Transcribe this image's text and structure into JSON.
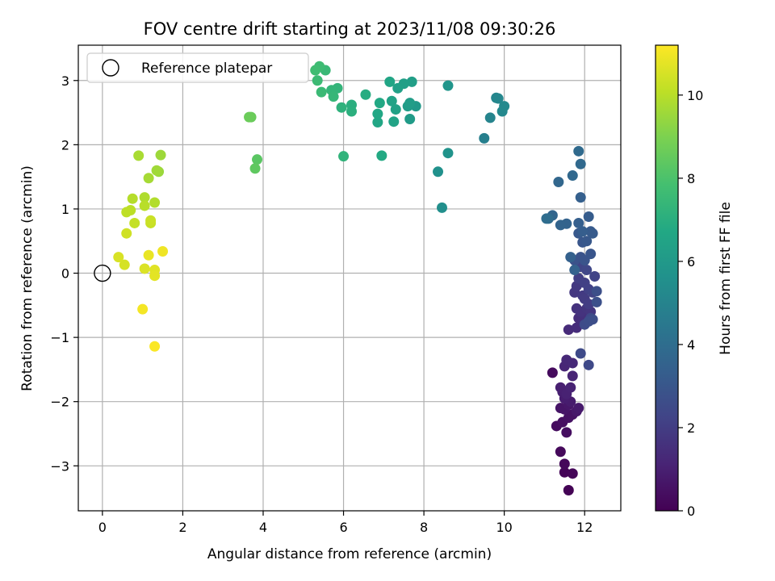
{
  "chart_data": {
    "type": "scatter",
    "title": "FOV centre drift starting at 2023/11/08 09:30:26",
    "xlabel": "Angular distance from reference (arcmin)",
    "ylabel": "Rotation from reference (arcmin)",
    "xlim": [
      -0.6,
      12.9
    ],
    "ylim": [
      -3.7,
      3.55
    ],
    "xticks": [
      0,
      2,
      4,
      6,
      8,
      10,
      12
    ],
    "yticks": [
      -3,
      -2,
      -1,
      0,
      1,
      2,
      3
    ],
    "xtick_labels": [
      "0",
      "2",
      "4",
      "6",
      "8",
      "10",
      "12"
    ],
    "ytick_labels": [
      "−3",
      "−2",
      "−1",
      "0",
      "1",
      "2",
      "3"
    ],
    "grid": true,
    "legend": {
      "position": "top-left",
      "entries": [
        "Reference platepar"
      ]
    },
    "reference_point": {
      "x": 0,
      "y": 0
    },
    "colorbar": {
      "label": "Hours from first FF file",
      "range": [
        0,
        11.2
      ],
      "ticks": [
        0,
        2,
        4,
        6,
        8,
        10
      ],
      "tick_labels": [
        "0",
        "2",
        "4",
        "6",
        "8",
        "10"
      ],
      "colormap": "viridis"
    },
    "points": [
      [
        11.6,
        -3.38,
        0.05
      ],
      [
        11.5,
        -3.1,
        0.1
      ],
      [
        11.7,
        -3.12,
        0.15
      ],
      [
        11.5,
        -2.97,
        0.2
      ],
      [
        11.4,
        -2.78,
        0.25
      ],
      [
        11.2,
        -1.55,
        0.3
      ],
      [
        11.3,
        -2.38,
        0.35
      ],
      [
        11.55,
        -2.48,
        0.4
      ],
      [
        11.45,
        -2.32,
        0.45
      ],
      [
        11.6,
        -2.25,
        0.5
      ],
      [
        11.7,
        -2.2,
        0.55
      ],
      [
        11.4,
        -2.1,
        0.6
      ],
      [
        11.5,
        -2.12,
        0.65
      ],
      [
        11.6,
        -2.05,
        0.7
      ],
      [
        11.8,
        -2.15,
        0.75
      ],
      [
        11.85,
        -2.1,
        0.8
      ],
      [
        11.65,
        -2.0,
        0.85
      ],
      [
        11.5,
        -1.95,
        0.9
      ],
      [
        11.45,
        -1.85,
        0.95
      ],
      [
        11.4,
        -1.78,
        1.0
      ],
      [
        11.55,
        -1.88,
        1.05
      ],
      [
        11.65,
        -1.78,
        1.1
      ],
      [
        11.7,
        -1.6,
        1.15
      ],
      [
        11.5,
        -1.45,
        1.2
      ],
      [
        11.55,
        -1.35,
        1.25
      ],
      [
        11.7,
        -1.4,
        1.3
      ],
      [
        11.6,
        -0.88,
        1.35
      ],
      [
        11.8,
        -0.85,
        1.4
      ],
      [
        11.85,
        -0.7,
        1.45
      ],
      [
        11.95,
        -0.72,
        1.5
      ],
      [
        12.0,
        -0.65,
        1.55
      ],
      [
        11.8,
        -0.55,
        1.6
      ],
      [
        11.9,
        -0.6,
        1.65
      ],
      [
        12.05,
        -0.55,
        1.7
      ],
      [
        12.15,
        -0.6,
        1.75
      ],
      [
        11.75,
        -0.3,
        1.8
      ],
      [
        11.8,
        -0.2,
        1.85
      ],
      [
        11.95,
        -0.35,
        1.9
      ],
      [
        12.0,
        -0.4,
        1.95
      ],
      [
        12.1,
        -0.48,
        2.0
      ],
      [
        11.85,
        -0.08,
        2.05
      ],
      [
        12.0,
        -0.15,
        2.1
      ],
      [
        12.1,
        -0.25,
        2.15
      ],
      [
        12.2,
        -0.3,
        2.2
      ],
      [
        12.25,
        -0.05,
        2.25
      ],
      [
        11.9,
        0.1,
        2.3
      ],
      [
        12.05,
        0.05,
        2.35
      ],
      [
        12.15,
        -0.7,
        2.4
      ],
      [
        12.1,
        -1.43,
        2.45
      ],
      [
        11.9,
        -1.25,
        2.5
      ],
      [
        12.0,
        -0.8,
        2.55
      ],
      [
        12.1,
        -0.75,
        2.6
      ],
      [
        12.2,
        -0.72,
        2.65
      ],
      [
        12.3,
        -0.28,
        2.7
      ],
      [
        12.3,
        -0.45,
        2.75
      ],
      [
        11.75,
        0.2,
        2.8
      ],
      [
        11.9,
        0.25,
        2.85
      ],
      [
        12.0,
        0.2,
        2.9
      ],
      [
        12.15,
        0.3,
        2.95
      ],
      [
        11.95,
        0.48,
        3.0
      ],
      [
        12.05,
        0.5,
        3.05
      ],
      [
        11.85,
        0.62,
        3.1
      ],
      [
        12.15,
        0.65,
        3.15
      ],
      [
        12.2,
        0.62,
        3.2
      ],
      [
        12.1,
        0.88,
        3.25
      ],
      [
        11.95,
        0.65,
        3.3
      ],
      [
        11.85,
        0.78,
        3.35
      ],
      [
        11.9,
        1.18,
        3.4
      ],
      [
        11.65,
        0.25,
        3.45
      ],
      [
        11.75,
        0.05,
        3.5
      ],
      [
        11.55,
        0.77,
        3.55
      ],
      [
        11.4,
        0.75,
        3.6
      ],
      [
        11.2,
        0.9,
        3.65
      ],
      [
        11.35,
        1.42,
        3.7
      ],
      [
        11.7,
        1.52,
        3.75
      ],
      [
        11.9,
        1.7,
        3.8
      ],
      [
        11.85,
        1.9,
        3.85
      ],
      [
        11.1,
        0.85,
        3.9
      ],
      [
        11.05,
        0.85,
        4.0
      ],
      [
        9.5,
        2.1,
        4.8
      ],
      [
        9.65,
        2.42,
        5.0
      ],
      [
        9.8,
        2.73,
        5.1
      ],
      [
        9.85,
        2.72,
        5.15
      ],
      [
        9.95,
        2.52,
        5.2
      ],
      [
        10.0,
        2.6,
        5.25
      ],
      [
        8.45,
        1.02,
        5.5
      ],
      [
        8.35,
        1.58,
        5.6
      ],
      [
        8.6,
        1.87,
        5.7
      ],
      [
        8.6,
        2.92,
        5.8
      ],
      [
        7.8,
        2.6,
        6.0
      ],
      [
        7.65,
        2.4,
        6.1
      ],
      [
        7.6,
        2.6,
        6.15
      ],
      [
        7.65,
        2.65,
        6.2
      ],
      [
        7.7,
        2.98,
        6.25
      ],
      [
        7.5,
        2.95,
        6.3
      ],
      [
        7.35,
        2.88,
        6.35
      ],
      [
        7.3,
        2.55,
        6.4
      ],
      [
        7.2,
        2.68,
        6.45
      ],
      [
        7.25,
        2.36,
        6.5
      ],
      [
        7.15,
        2.98,
        6.55
      ],
      [
        6.85,
        2.35,
        6.6
      ],
      [
        6.85,
        2.48,
        6.65
      ],
      [
        6.9,
        2.65,
        6.7
      ],
      [
        6.95,
        1.83,
        6.75
      ],
      [
        6.55,
        2.78,
        6.9
      ],
      [
        6.2,
        2.62,
        7.0
      ],
      [
        6.2,
        2.52,
        7.05
      ],
      [
        5.95,
        2.58,
        7.15
      ],
      [
        6.0,
        1.82,
        7.25
      ],
      [
        5.85,
        2.88,
        7.3
      ],
      [
        5.7,
        2.85,
        7.35
      ],
      [
        5.75,
        2.75,
        7.4
      ],
      [
        5.55,
        3.16,
        7.5
      ],
      [
        5.45,
        2.82,
        7.55
      ],
      [
        5.35,
        3.0,
        7.6
      ],
      [
        5.4,
        3.22,
        7.65
      ],
      [
        5.3,
        3.16,
        7.7
      ],
      [
        3.85,
        1.77,
        8.3
      ],
      [
        3.8,
        1.63,
        8.4
      ],
      [
        3.7,
        2.43,
        8.6
      ],
      [
        3.65,
        2.43,
        8.65
      ],
      [
        1.4,
        1.58,
        9.5
      ],
      [
        1.45,
        1.84,
        9.55
      ],
      [
        1.35,
        1.6,
        9.6
      ],
      [
        1.15,
        1.48,
        9.7
      ],
      [
        0.9,
        1.83,
        9.75
      ],
      [
        1.05,
        1.18,
        9.85
      ],
      [
        1.3,
        1.1,
        9.9
      ],
      [
        0.75,
        1.16,
        9.95
      ],
      [
        1.05,
        1.05,
        10.0
      ],
      [
        0.7,
        0.98,
        10.05
      ],
      [
        0.6,
        0.95,
        10.1
      ],
      [
        0.8,
        0.78,
        10.2
      ],
      [
        1.2,
        0.78,
        10.25
      ],
      [
        1.2,
        0.82,
        10.3
      ],
      [
        0.6,
        0.62,
        10.4
      ],
      [
        0.55,
        0.13,
        10.5
      ],
      [
        0.4,
        0.25,
        10.55
      ],
      [
        1.05,
        0.07,
        10.6
      ],
      [
        1.3,
        0.05,
        10.7
      ],
      [
        1.3,
        -0.04,
        10.75
      ],
      [
        1.15,
        0.28,
        10.85
      ],
      [
        1.5,
        0.34,
        10.95
      ],
      [
        1.0,
        -0.56,
        11.05
      ],
      [
        1.3,
        -1.14,
        11.15
      ]
    ]
  }
}
